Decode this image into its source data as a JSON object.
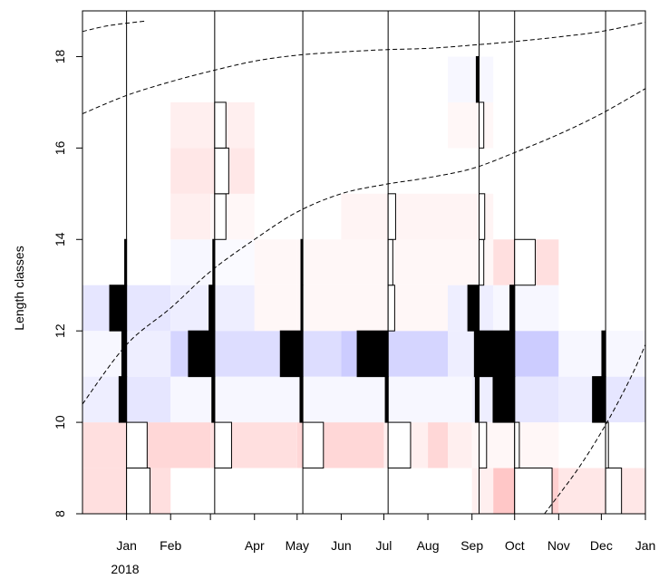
{
  "chart_data": {
    "type": "heatmap",
    "title": "",
    "xlabel": "",
    "ylabel": "Length classes",
    "xlim": [
      "2017-12-01",
      "2019-01-01"
    ],
    "ylim": [
      8,
      19
    ],
    "y_ticks": [
      8,
      10,
      12,
      14,
      16,
      18
    ],
    "x_ticks": [
      {
        "date": "2018-01-01",
        "label": "Jan"
      },
      {
        "date": "2018-02-01",
        "label": "Feb"
      },
      {
        "date": "2018-03-01",
        "label": ""
      },
      {
        "date": "2018-04-01",
        "label": "Apr"
      },
      {
        "date": "2018-05-01",
        "label": "May"
      },
      {
        "date": "2018-06-01",
        "label": "Jun"
      },
      {
        "date": "2018-07-01",
        "label": "Jul"
      },
      {
        "date": "2018-08-01",
        "label": "Aug"
      },
      {
        "date": "2018-09-01",
        "label": "Sep"
      },
      {
        "date": "2018-10-01",
        "label": "Oct"
      },
      {
        "date": "2018-11-01",
        "label": "Nov"
      },
      {
        "date": "2018-12-01",
        "label": "Dec"
      },
      {
        "date": "2019-01-01",
        "label": "Jan"
      }
    ],
    "year_label": "2018",
    "grid": false,
    "sample_dates": [
      "2018-01-01",
      "2018-03-04",
      "2018-05-05",
      "2018-07-04",
      "2018-09-06",
      "2018-10-01",
      "2018-12-04"
    ],
    "length_bins": [
      {
        "from": 8,
        "to": 9
      },
      {
        "from": 9,
        "to": 10
      },
      {
        "from": 10,
        "to": 11
      },
      {
        "from": 11,
        "to": 12
      },
      {
        "from": 12,
        "to": 13
      },
      {
        "from": 13,
        "to": 14
      },
      {
        "from": 14,
        "to": 15
      },
      {
        "from": 15,
        "to": 16
      },
      {
        "from": 16,
        "to": 17
      },
      {
        "from": 17,
        "to": 18
      }
    ],
    "cells": [
      {
        "x0": "2017-12-01",
        "x1": "2018-02-01",
        "bin": 0,
        "v": 0.2
      },
      {
        "x0": "2017-12-01",
        "x1": "2018-01-01",
        "bin": 1,
        "v": 0.2
      },
      {
        "x0": "2018-01-01",
        "x1": "2018-03-01",
        "bin": 1,
        "v": 0.25
      },
      {
        "x0": "2017-12-01",
        "x1": "2018-01-01",
        "bin": 2,
        "v": -0.1
      },
      {
        "x0": "2018-01-01",
        "x1": "2018-02-01",
        "bin": 2,
        "v": -0.15
      },
      {
        "x0": "2018-02-01",
        "x1": "2018-03-01",
        "bin": 2,
        "v": -0.05
      },
      {
        "x0": "2017-12-01",
        "x1": "2018-01-01",
        "bin": 3,
        "v": -0.05
      },
      {
        "x0": "2018-01-01",
        "x1": "2018-02-01",
        "bin": 3,
        "v": -0.1
      },
      {
        "x0": "2018-02-01",
        "x1": "2018-03-01",
        "bin": 3,
        "v": -0.25
      },
      {
        "x0": "2017-12-01",
        "x1": "2018-01-01",
        "bin": 4,
        "v": -0.15
      },
      {
        "x0": "2018-01-01",
        "x1": "2018-02-01",
        "bin": 4,
        "v": -0.15
      },
      {
        "x0": "2018-02-01",
        "x1": "2018-03-01",
        "bin": 4,
        "v": -0.1
      },
      {
        "x0": "2018-02-01",
        "x1": "2018-03-01",
        "bin": 5,
        "v": -0.05
      },
      {
        "x0": "2018-02-01",
        "x1": "2018-03-01",
        "bin": 6,
        "v": 0.1
      },
      {
        "x0": "2018-02-01",
        "x1": "2018-03-01",
        "bin": 7,
        "v": 0.15
      },
      {
        "x0": "2018-02-01",
        "x1": "2018-03-01",
        "bin": 8,
        "v": 0.1
      },
      {
        "x0": "2018-03-01",
        "x1": "2018-05-01",
        "bin": 1,
        "v": 0.2
      },
      {
        "x0": "2018-03-01",
        "x1": "2018-05-01",
        "bin": 2,
        "v": -0.05
      },
      {
        "x0": "2018-03-01",
        "x1": "2018-05-01",
        "bin": 3,
        "v": -0.2
      },
      {
        "x0": "2018-03-01",
        "x1": "2018-04-01",
        "bin": 4,
        "v": -0.1
      },
      {
        "x0": "2018-04-01",
        "x1": "2018-05-01",
        "bin": 4,
        "v": 0.05
      },
      {
        "x0": "2018-03-01",
        "x1": "2018-04-01",
        "bin": 5,
        "v": -0.03
      },
      {
        "x0": "2018-04-01",
        "x1": "2018-05-01",
        "bin": 5,
        "v": 0.05
      },
      {
        "x0": "2018-03-01",
        "x1": "2018-04-01",
        "bin": 6,
        "v": 0.05
      },
      {
        "x0": "2018-03-01",
        "x1": "2018-04-01",
        "bin": 7,
        "v": 0.15
      },
      {
        "x0": "2018-03-01",
        "x1": "2018-04-01",
        "bin": 8,
        "v": 0.1
      },
      {
        "x0": "2018-05-01",
        "x1": "2018-07-01",
        "bin": 1,
        "v": 0.25
      },
      {
        "x0": "2018-05-01",
        "x1": "2018-07-01",
        "bin": 2,
        "v": -0.05
      },
      {
        "x0": "2018-05-01",
        "x1": "2018-06-01",
        "bin": 3,
        "v": -0.2
      },
      {
        "x0": "2018-06-01",
        "x1": "2018-07-01",
        "bin": 3,
        "v": -0.3
      },
      {
        "x0": "2018-05-01",
        "x1": "2018-07-01",
        "bin": 4,
        "v": 0.05
      },
      {
        "x0": "2018-05-01",
        "x1": "2018-07-01",
        "bin": 5,
        "v": 0.05
      },
      {
        "x0": "2018-06-01",
        "x1": "2018-07-01",
        "bin": 6,
        "v": 0.07
      },
      {
        "x0": "2018-07-01",
        "x1": "2018-08-01",
        "bin": 1,
        "v": 0.1
      },
      {
        "x0": "2018-08-01",
        "x1": "2018-08-15",
        "bin": 1,
        "v": 0.25
      },
      {
        "x0": "2018-08-15",
        "x1": "2018-09-01",
        "bin": 1,
        "v": 0.1
      },
      {
        "x0": "2018-07-01",
        "x1": "2018-09-01",
        "bin": 2,
        "v": -0.05
      },
      {
        "x0": "2018-07-01",
        "x1": "2018-08-15",
        "bin": 3,
        "v": -0.25
      },
      {
        "x0": "2018-08-15",
        "x1": "2018-09-01",
        "bin": 3,
        "v": -0.1
      },
      {
        "x0": "2018-07-01",
        "x1": "2018-08-15",
        "bin": 4,
        "v": 0.05
      },
      {
        "x0": "2018-08-15",
        "x1": "2018-09-01",
        "bin": 4,
        "v": -0.1
      },
      {
        "x0": "2018-07-01",
        "x1": "2018-09-01",
        "bin": 5,
        "v": 0.05
      },
      {
        "x0": "2018-07-01",
        "x1": "2018-09-01",
        "bin": 6,
        "v": 0.07
      },
      {
        "x0": "2018-08-15",
        "x1": "2018-09-01",
        "bin": 8,
        "v": 0.05
      },
      {
        "x0": "2018-08-15",
        "x1": "2018-09-01",
        "bin": 9,
        "v": -0.05
      },
      {
        "x0": "2018-09-01",
        "x1": "2018-09-16",
        "bin": 0,
        "v": 0.1
      },
      {
        "x0": "2018-09-16",
        "x1": "2018-10-01",
        "bin": 0,
        "v": 0.35
      },
      {
        "x0": "2018-09-01",
        "x1": "2018-10-01",
        "bin": 1,
        "v": 0.05
      },
      {
        "x0": "2018-09-01",
        "x1": "2018-10-01",
        "bin": 2,
        "v": -0.1
      },
      {
        "x0": "2018-09-01",
        "x1": "2018-09-16",
        "bin": 3,
        "v": -0.1
      },
      {
        "x0": "2018-09-16",
        "x1": "2018-10-01",
        "bin": 3,
        "v": -0.05
      },
      {
        "x0": "2018-09-01",
        "x1": "2018-09-16",
        "bin": 4,
        "v": -0.1
      },
      {
        "x0": "2018-09-16",
        "x1": "2018-10-01",
        "bin": 4,
        "v": -0.05
      },
      {
        "x0": "2018-09-01",
        "x1": "2018-09-16",
        "bin": 5,
        "v": 0.05
      },
      {
        "x0": "2018-09-16",
        "x1": "2018-10-01",
        "bin": 5,
        "v": 0.2
      },
      {
        "x0": "2018-09-01",
        "x1": "2018-09-16",
        "bin": 6,
        "v": 0.07
      },
      {
        "x0": "2018-09-01",
        "x1": "2018-09-16",
        "bin": 8,
        "v": 0.05
      },
      {
        "x0": "2018-09-01",
        "x1": "2018-09-16",
        "bin": 9,
        "v": -0.05
      },
      {
        "x0": "2018-10-01",
        "x1": "2018-11-01",
        "bin": 0,
        "v": 0.3
      },
      {
        "x0": "2018-10-01",
        "x1": "2018-11-01",
        "bin": 1,
        "v": 0.05
      },
      {
        "x0": "2018-10-01",
        "x1": "2018-11-01",
        "bin": 2,
        "v": -0.15
      },
      {
        "x0": "2018-10-01",
        "x1": "2018-11-01",
        "bin": 3,
        "v": -0.3
      },
      {
        "x0": "2018-10-01",
        "x1": "2018-11-01",
        "bin": 4,
        "v": -0.05
      },
      {
        "x0": "2018-10-01",
        "x1": "2018-11-01",
        "bin": 5,
        "v": 0.2
      },
      {
        "x0": "2018-11-01",
        "x1": "2018-12-01",
        "bin": 0,
        "v": 0.15
      },
      {
        "x0": "2018-11-01",
        "x1": "2018-12-01",
        "bin": 2,
        "v": -0.1
      },
      {
        "x0": "2018-11-01",
        "x1": "2018-12-01",
        "bin": 3,
        "v": -0.05
      },
      {
        "x0": "2018-12-01",
        "x1": "2019-01-01",
        "bin": 0,
        "v": 0.15
      },
      {
        "x0": "2018-12-01",
        "x1": "2019-01-01",
        "bin": 2,
        "v": -0.15
      },
      {
        "x0": "2018-12-01",
        "x1": "2019-01-01",
        "bin": 3,
        "v": -0.05
      }
    ],
    "histograms": [
      {
        "date": "2018-01-01",
        "bars": [
          {
            "bin": 0,
            "v": 0.25
          },
          {
            "bin": 1,
            "v": 0.22
          },
          {
            "bin": 2,
            "v": -0.08
          },
          {
            "bin": 3,
            "v": -0.05
          },
          {
            "bin": 4,
            "v": -0.18
          },
          {
            "bin": 5,
            "v": -0.02
          }
        ]
      },
      {
        "date": "2018-03-04",
        "bars": [
          {
            "bin": 1,
            "v": 0.18
          },
          {
            "bin": 2,
            "v": -0.03
          },
          {
            "bin": 3,
            "v": -0.28
          },
          {
            "bin": 4,
            "v": -0.06
          },
          {
            "bin": 5,
            "v": -0.02
          },
          {
            "bin": 6,
            "v": 0.12
          },
          {
            "bin": 7,
            "v": 0.15
          },
          {
            "bin": 8,
            "v": 0.12
          }
        ]
      },
      {
        "date": "2018-05-05",
        "bars": [
          {
            "bin": 1,
            "v": 0.22
          },
          {
            "bin": 2,
            "v": -0.03
          },
          {
            "bin": 3,
            "v": -0.24
          },
          {
            "bin": 4,
            "v": -0.02
          },
          {
            "bin": 5,
            "v": -0.02
          }
        ]
      },
      {
        "date": "2018-07-04",
        "bars": [
          {
            "bin": 1,
            "v": 0.24
          },
          {
            "bin": 2,
            "v": -0.03
          },
          {
            "bin": 3,
            "v": -0.33
          },
          {
            "bin": 4,
            "v": 0.07
          },
          {
            "bin": 5,
            "v": 0.05
          },
          {
            "bin": 6,
            "v": 0.08
          }
        ]
      },
      {
        "date": "2018-09-06",
        "bars": [
          {
            "bin": 1,
            "v": 0.08
          },
          {
            "bin": 2,
            "v": -0.04
          },
          {
            "bin": 3,
            "v": -0.05
          },
          {
            "bin": 4,
            "v": -0.12
          },
          {
            "bin": 5,
            "v": 0.05
          },
          {
            "bin": 6,
            "v": 0.06
          },
          {
            "bin": 8,
            "v": 0.05
          },
          {
            "bin": 9,
            "v": -0.03
          }
        ]
      },
      {
        "date": "2018-10-01",
        "bars": [
          {
            "bin": 0,
            "v": 0.4
          },
          {
            "bin": 1,
            "v": 0.05
          },
          {
            "bin": 2,
            "v": -0.23
          },
          {
            "bin": 3,
            "v": -0.38
          },
          {
            "bin": 4,
            "v": -0.05
          },
          {
            "bin": 5,
            "v": 0.22
          }
        ]
      },
      {
        "date": "2018-12-04",
        "bars": [
          {
            "bin": 0,
            "v": 0.17
          },
          {
            "bin": 1,
            "v": 0.03
          },
          {
            "bin": 2,
            "v": -0.14
          },
          {
            "bin": 3,
            "v": -0.04
          }
        ]
      }
    ],
    "growth_curves": [
      {
        "points": [
          [
            "2017-12-01",
            18.55
          ],
          [
            "2017-12-20",
            18.68
          ],
          [
            "2018-01-15",
            18.78
          ]
        ]
      },
      {
        "points": [
          [
            "2017-12-01",
            16.75
          ],
          [
            "2018-01-01",
            17.15
          ],
          [
            "2018-02-01",
            17.45
          ],
          [
            "2018-03-01",
            17.68
          ],
          [
            "2018-04-01",
            17.9
          ],
          [
            "2018-05-01",
            18.03
          ],
          [
            "2018-06-01",
            18.1
          ],
          [
            "2018-07-01",
            18.15
          ],
          [
            "2018-08-01",
            18.18
          ],
          [
            "2018-09-01",
            18.25
          ],
          [
            "2018-10-01",
            18.33
          ],
          [
            "2018-11-01",
            18.43
          ],
          [
            "2018-12-01",
            18.55
          ],
          [
            "2019-01-01",
            18.75
          ]
        ]
      },
      {
        "points": [
          [
            "2017-12-01",
            10.4
          ],
          [
            "2018-01-01",
            11.7
          ],
          [
            "2018-02-01",
            12.5
          ],
          [
            "2018-03-01",
            13.3
          ],
          [
            "2018-04-01",
            14.0
          ],
          [
            "2018-05-01",
            14.6
          ],
          [
            "2018-06-01",
            15.0
          ],
          [
            "2018-07-01",
            15.2
          ],
          [
            "2018-08-01",
            15.35
          ],
          [
            "2018-09-01",
            15.55
          ],
          [
            "2018-10-01",
            15.9
          ],
          [
            "2018-11-01",
            16.3
          ],
          [
            "2018-12-01",
            16.75
          ],
          [
            "2019-01-01",
            17.3
          ]
        ]
      },
      {
        "points": [
          [
            "2018-10-22",
            8.0
          ],
          [
            "2018-11-15",
            9.0
          ],
          [
            "2018-12-05",
            10.0
          ],
          [
            "2018-12-22",
            11.0
          ],
          [
            "2019-01-01",
            11.7
          ]
        ]
      }
    ]
  }
}
